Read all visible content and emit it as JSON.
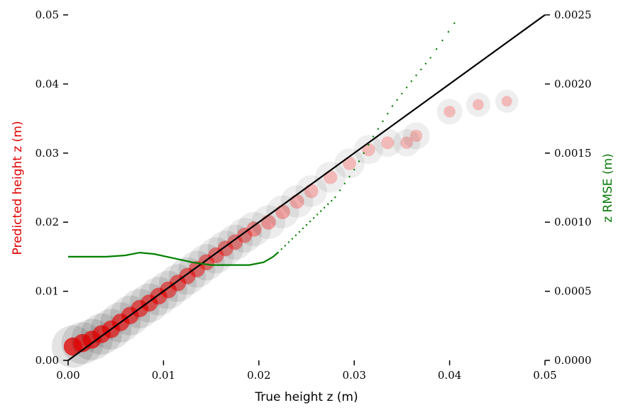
{
  "chart_data": {
    "type": "scatter",
    "xlabel": "True height z (m)",
    "ylabel_left": "Predicted height z (m)",
    "ylabel_right": "z RMSE (m)",
    "xlim": [
      0,
      0.05
    ],
    "ylim_left": [
      0,
      0.05
    ],
    "ylim_right": [
      0,
      0.0025
    ],
    "x_ticks": [
      "0.00",
      "0.01",
      "0.02",
      "0.03",
      "0.04",
      "0.05"
    ],
    "y_left_ticks": [
      "0.00",
      "0.01",
      "0.02",
      "0.03",
      "0.04",
      "0.05"
    ],
    "y_right_ticks": [
      "0.0000",
      "0.0005",
      "0.0010",
      "0.0015",
      "0.0020",
      "0.0025"
    ],
    "grid": false,
    "series": [
      {
        "kind": "density",
        "color": "#ff0000",
        "points": [
          [
            0.0005,
            0.002
          ],
          [
            0.0015,
            0.0025
          ],
          [
            0.0025,
            0.003
          ],
          [
            0.0035,
            0.0038
          ],
          [
            0.0045,
            0.0045
          ],
          [
            0.0055,
            0.0055
          ],
          [
            0.0065,
            0.0065
          ],
          [
            0.0075,
            0.0075
          ],
          [
            0.0085,
            0.0083
          ],
          [
            0.0095,
            0.0093
          ],
          [
            0.0105,
            0.0102
          ],
          [
            0.0115,
            0.0112
          ],
          [
            0.0125,
            0.0122
          ],
          [
            0.0135,
            0.0132
          ],
          [
            0.0145,
            0.0142
          ],
          [
            0.0155,
            0.0152
          ],
          [
            0.0165,
            0.0162
          ],
          [
            0.0175,
            0.0171
          ],
          [
            0.0185,
            0.0181
          ],
          [
            0.0195,
            0.019
          ],
          [
            0.021,
            0.02
          ],
          [
            0.0225,
            0.0215
          ],
          [
            0.024,
            0.023
          ],
          [
            0.0255,
            0.0245
          ],
          [
            0.0275,
            0.0265
          ],
          [
            0.0295,
            0.0285
          ],
          [
            0.0315,
            0.0305
          ],
          [
            0.0335,
            0.0315
          ],
          [
            0.0355,
            0.0315
          ],
          [
            0.0365,
            0.0325
          ],
          [
            0.04,
            0.036
          ],
          [
            0.043,
            0.037
          ],
          [
            0.046,
            0.0375
          ]
        ]
      },
      {
        "kind": "reference",
        "color": "#000000",
        "x": [
          0,
          0.05
        ],
        "y": [
          0,
          0.05
        ]
      },
      {
        "kind": "rmse",
        "color": "#008000",
        "axis": "right",
        "x": [
          0.0,
          0.004,
          0.006,
          0.0075,
          0.009,
          0.011,
          0.013,
          0.015,
          0.017,
          0.019,
          0.0205,
          0.0215,
          0.022,
          0.0235,
          0.025,
          0.0265,
          0.028,
          0.03,
          0.032,
          0.034,
          0.036,
          0.038,
          0.0405
        ],
        "y": [
          0.00075,
          0.00075,
          0.00076,
          0.00078,
          0.00077,
          0.00074,
          0.00071,
          0.00069,
          0.00069,
          0.00069,
          0.00071,
          0.00075,
          0.00078,
          0.00088,
          0.00098,
          0.00108,
          0.00118,
          0.00138,
          0.00162,
          0.00184,
          0.00202,
          0.00219,
          0.00244
        ]
      }
    ]
  }
}
